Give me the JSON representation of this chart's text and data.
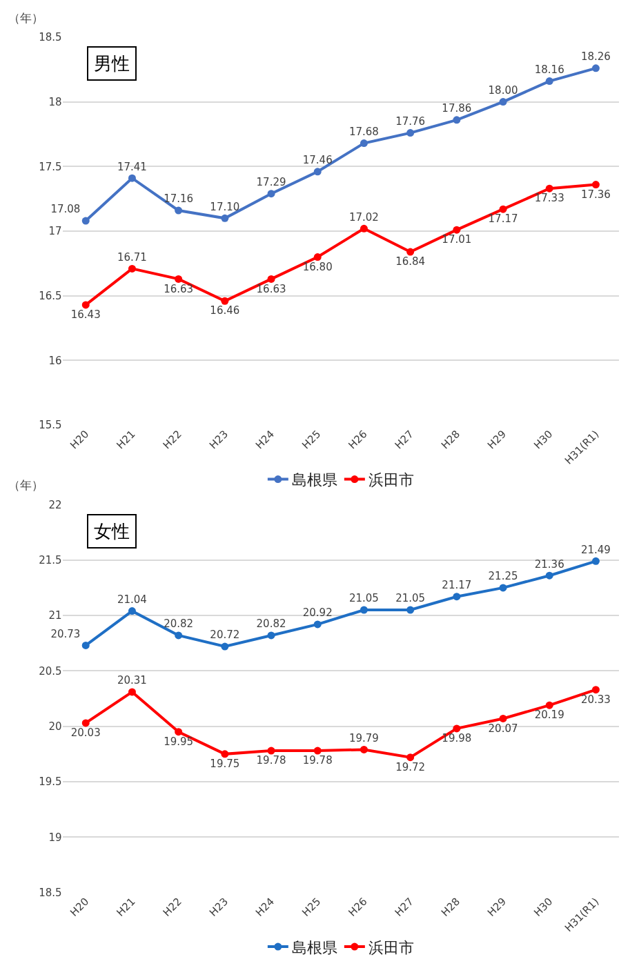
{
  "chart_data": [
    {
      "type": "line",
      "title": "男性",
      "ylabel": "（年）",
      "categories": [
        "H20",
        "H21",
        "H22",
        "H23",
        "H24",
        "H25",
        "H26",
        "H27",
        "H28",
        "H29",
        "H30",
        "H31(R1)"
      ],
      "ylim": [
        15.5,
        18.5
      ],
      "yticks": [
        15.5,
        16,
        16.5,
        17,
        17.5,
        18,
        18.5
      ],
      "grid": "y",
      "legend": "bottom",
      "marker": "circle",
      "line_style": "solid",
      "series": [
        {
          "name": "島根県",
          "color": "#4472c4",
          "values": [
            17.08,
            17.41,
            17.16,
            17.1,
            17.29,
            17.46,
            17.68,
            17.76,
            17.86,
            18.0,
            18.16,
            18.26
          ],
          "value_labels": [
            "17.08",
            "17.41",
            "17.16",
            "17.10",
            "17.29",
            "17.46",
            "17.68",
            "17.76",
            "17.86",
            "18.00",
            "18.16",
            "18.26"
          ]
        },
        {
          "name": "浜田市",
          "color": "#ff0000",
          "values": [
            16.43,
            16.71,
            16.63,
            16.46,
            16.63,
            16.8,
            17.02,
            16.84,
            17.01,
            17.17,
            17.33,
            17.36
          ],
          "value_labels": [
            "16.43",
            "16.71",
            "16.63",
            "16.46",
            "16.63",
            "16.80",
            "17.02",
            "16.84",
            "17.01",
            "17.17",
            "17.33",
            "17.36"
          ]
        }
      ]
    },
    {
      "type": "line",
      "title": "女性",
      "ylabel": "（年）",
      "categories": [
        "H20",
        "H21",
        "H22",
        "H23",
        "H24",
        "H25",
        "H26",
        "H27",
        "H28",
        "H29",
        "H30",
        "H31(R1)"
      ],
      "ylim": [
        18.5,
        22
      ],
      "yticks": [
        18.5,
        19,
        19.5,
        20,
        20.5,
        21,
        21.5,
        22
      ],
      "grid": "y",
      "legend": "bottom",
      "marker": "circle",
      "line_style": "solid",
      "series": [
        {
          "name": "島根県",
          "color": "#1f6fc5",
          "values": [
            20.73,
            21.04,
            20.82,
            20.72,
            20.82,
            20.92,
            21.05,
            21.05,
            21.17,
            21.25,
            21.36,
            21.49
          ],
          "value_labels": [
            "20.73",
            "21.04",
            "20.82",
            "20.72",
            "20.82",
            "20.92",
            "21.05",
            "21.05",
            "21.17",
            "21.25",
            "21.36",
            "21.49"
          ]
        },
        {
          "name": "浜田市",
          "color": "#ff0000",
          "values": [
            20.03,
            20.31,
            19.95,
            19.75,
            19.78,
            19.78,
            19.79,
            19.72,
            19.98,
            20.07,
            20.19,
            20.33
          ],
          "value_labels": [
            "20.03",
            "20.31",
            "19.95",
            "19.75",
            "19.78",
            "19.78",
            "19.79",
            "19.72",
            "19.98",
            "20.07",
            "20.19",
            "20.33"
          ]
        }
      ]
    }
  ]
}
